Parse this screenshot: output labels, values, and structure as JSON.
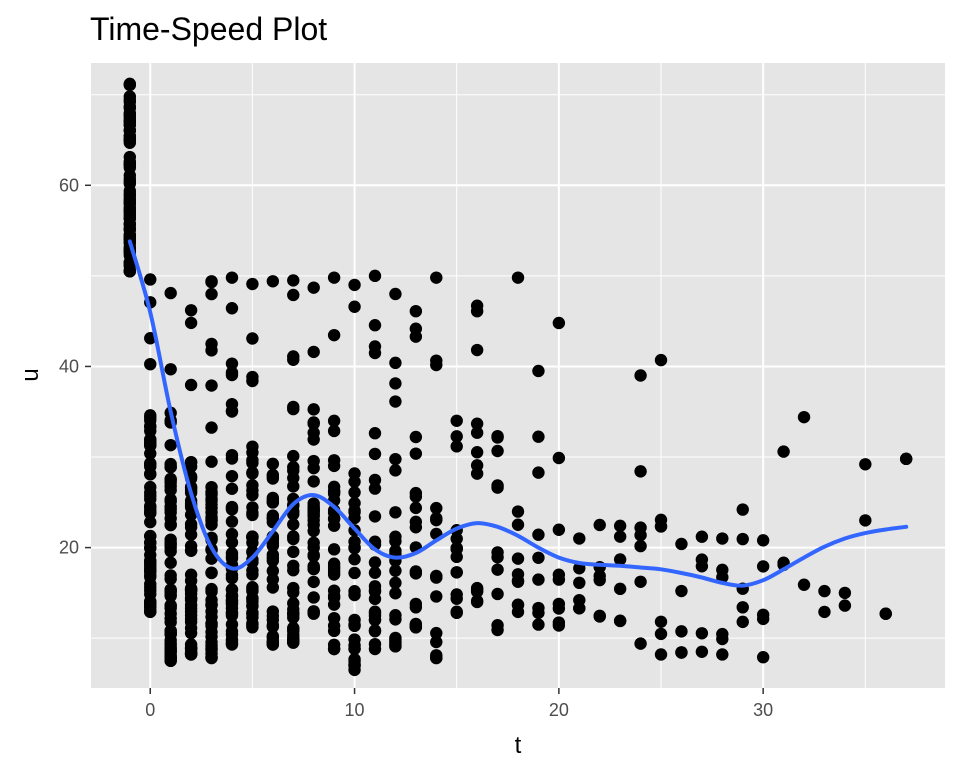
{
  "chart_data": {
    "type": "scatter",
    "title": "Time-Speed Plot",
    "xlabel": "t",
    "ylabel": "u",
    "xlim": [
      -2.9,
      38.9
    ],
    "ylim": [
      4.5,
      73.5
    ],
    "x_ticks": [
      0,
      10,
      20,
      30
    ],
    "x_tick_labels": [
      "0",
      "10",
      "20",
      "30"
    ],
    "y_ticks": [
      20,
      40,
      60
    ],
    "y_tick_labels": [
      "20",
      "40",
      "60"
    ],
    "grid": true,
    "legend": "none",
    "colors": {
      "panel_background": "#e5e5e5",
      "grid": "#ffffff",
      "points": "#000000",
      "smooth_line": "#3366ff"
    },
    "series": [
      {
        "kind": "points",
        "columns": [
          {
            "x": -1,
            "ymin": 50.5,
            "ymax": 71.2,
            "n": 80
          },
          {
            "x": 0,
            "ymin": 12.9,
            "ymax": 49.6,
            "n": 65
          },
          {
            "x": 1,
            "ymin": 7.5,
            "ymax": 48.1,
            "n": 62
          },
          {
            "x": 2,
            "ymin": 8.2,
            "ymax": 46.2,
            "n": 55
          },
          {
            "x": 3,
            "ymin": 7.8,
            "ymax": 49.4,
            "n": 48
          },
          {
            "x": 4,
            "ymin": 9.3,
            "ymax": 49.8,
            "n": 45
          },
          {
            "x": 5,
            "ymin": 11.2,
            "ymax": 49.1,
            "n": 42
          },
          {
            "x": 6,
            "ymin": 9.3,
            "ymax": 49.4,
            "n": 38
          },
          {
            "x": 7,
            "ymin": 9.5,
            "ymax": 49.5,
            "n": 40
          },
          {
            "x": 8,
            "ymin": 12.7,
            "ymax": 48.7,
            "n": 34
          },
          {
            "x": 9,
            "ymin": 8.8,
            "ymax": 49.8,
            "n": 32
          },
          {
            "x": 10,
            "ymin": 6.5,
            "ymax": 49.0,
            "n": 30
          },
          {
            "x": 11,
            "ymin": 8.8,
            "ymax": 50.0,
            "n": 26
          },
          {
            "x": 12,
            "ymin": 9.1,
            "ymax": 48.0,
            "n": 24
          },
          {
            "x": 13,
            "ymin": 11.2,
            "ymax": 46.1,
            "n": 20
          },
          {
            "x": 14,
            "ymin": 7.8,
            "ymax": 49.8,
            "n": 18
          },
          {
            "x": 15,
            "ymin": 12.8,
            "ymax": 34.0,
            "n": 15
          },
          {
            "x": 16,
            "ymin": 14.0,
            "ymax": 46.7,
            "n": 13
          },
          {
            "x": 17,
            "ymin": 10.9,
            "ymax": 32.3,
            "n": 11
          },
          {
            "x": 18,
            "ymin": 12.9,
            "ymax": 49.8,
            "n": 10
          },
          {
            "x": 19,
            "ymin": 11.5,
            "ymax": 39.5,
            "n": 9
          },
          {
            "x": 20,
            "ymin": 11.4,
            "ymax": 44.8,
            "n": 9
          },
          {
            "x": 21,
            "ymin": 13.3,
            "ymax": 21.0,
            "n": 6
          },
          {
            "x": 22,
            "ymin": 12.4,
            "ymax": 22.5,
            "n": 6
          },
          {
            "x": 23,
            "ymin": 11.9,
            "ymax": 22.4,
            "n": 6
          },
          {
            "x": 24,
            "ymin": 9.4,
            "ymax": 39.0,
            "n": 7
          },
          {
            "x": 25,
            "ymin": 8.2,
            "ymax": 40.7,
            "n": 7
          },
          {
            "x": 26,
            "ymin": 8.4,
            "ymax": 20.4,
            "n": 5
          },
          {
            "x": 27,
            "ymin": 8.5,
            "ymax": 21.2,
            "n": 5
          },
          {
            "x": 28,
            "ymin": 8.2,
            "ymax": 21.0,
            "n": 6
          },
          {
            "x": 29,
            "ymin": 11.8,
            "ymax": 24.2,
            "n": 5
          },
          {
            "x": 30,
            "ymin": 7.9,
            "ymax": 20.8,
            "n": 5
          },
          {
            "x": 31,
            "ymin": 18.1,
            "ymax": 30.6,
            "n": 3
          },
          {
            "x": 32,
            "ymin": 15.9,
            "ymax": 34.4,
            "n": 2
          },
          {
            "x": 33,
            "ymin": 12.9,
            "ymax": 15.2,
            "n": 2
          },
          {
            "x": 34,
            "ymin": 13.6,
            "ymax": 15.0,
            "n": 2
          },
          {
            "x": 35,
            "ymin": 23.0,
            "ymax": 29.2,
            "n": 2
          },
          {
            "x": 36,
            "ymin": 12.7,
            "ymax": 12.7,
            "n": 1
          },
          {
            "x": 37,
            "ymin": 29.8,
            "ymax": 29.8,
            "n": 1
          }
        ]
      },
      {
        "kind": "smooth",
        "x": [
          -1,
          0,
          1,
          2,
          3,
          4,
          5,
          6,
          7,
          8,
          9,
          10,
          11,
          12,
          13,
          14,
          15,
          16,
          17,
          18,
          19,
          20,
          21,
          22,
          23,
          24,
          25,
          26,
          27,
          28,
          29,
          30,
          31,
          32,
          33,
          34,
          35,
          36,
          37
        ],
        "y": [
          53.8,
          46.0,
          35.0,
          26.0,
          20.0,
          17.7,
          18.9,
          21.8,
          24.8,
          25.8,
          24.5,
          22.1,
          19.8,
          18.9,
          19.4,
          20.8,
          22.1,
          22.7,
          22.3,
          21.3,
          20.0,
          18.9,
          18.3,
          18.1,
          18.0,
          17.8,
          17.6,
          17.2,
          16.7,
          16.1,
          15.8,
          16.4,
          17.6,
          18.9,
          20.1,
          21.0,
          21.6,
          22.0,
          22.3
        ]
      }
    ]
  }
}
